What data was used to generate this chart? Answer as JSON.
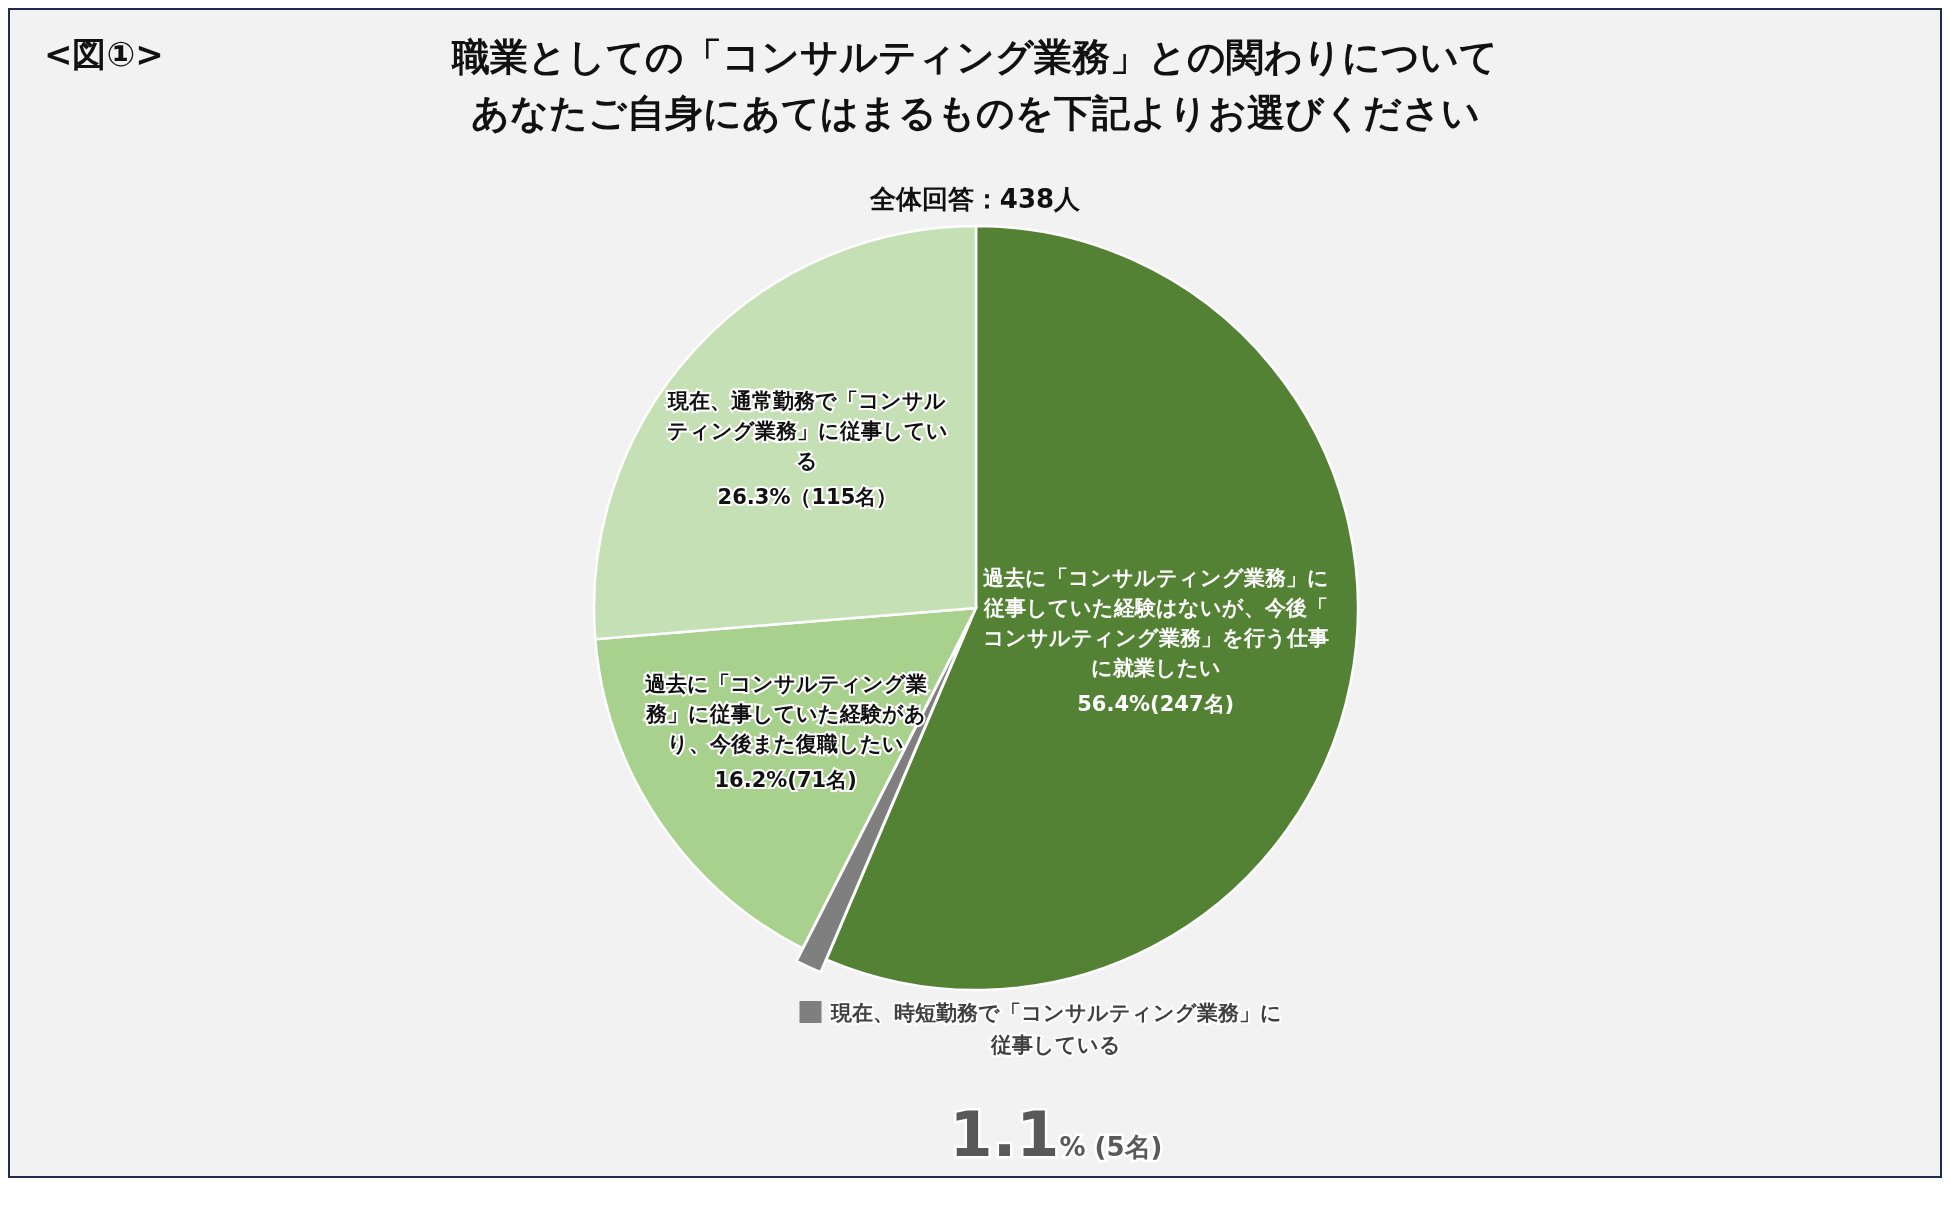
{
  "chart_data": {
    "type": "pie",
    "title": "職業としての「コンサルティング業務」との関わりについてあなたご自身にあてはまるものを下記よりお選びください",
    "subtitle": "全体回答：438人",
    "annotations": [
      "<図①>"
    ],
    "categories": [
      "過去に「コンサルティング業務」に従事していた経験はないが、今後「コンサルティング業務」を行う仕事に就業したい",
      "現在、時短勤務で「コンサルティング業務」に従事している",
      "過去に「コンサルティング業務」に従事していた経験があり、今後また復職したい",
      "現在、通常勤務で「コンサルティング業務」に従事している"
    ],
    "values": [
      56.4,
      1.1,
      16.2,
      26.3
    ],
    "colors": [
      "#548235",
      "#7f7f7f",
      "#a9d18e",
      "#c5e0b4"
    ],
    "value_labels": [
      "56.4%(247名)",
      "1.1% (5名)",
      "16.2%(71名)",
      "26.3%（115名）"
    ]
  }
}
